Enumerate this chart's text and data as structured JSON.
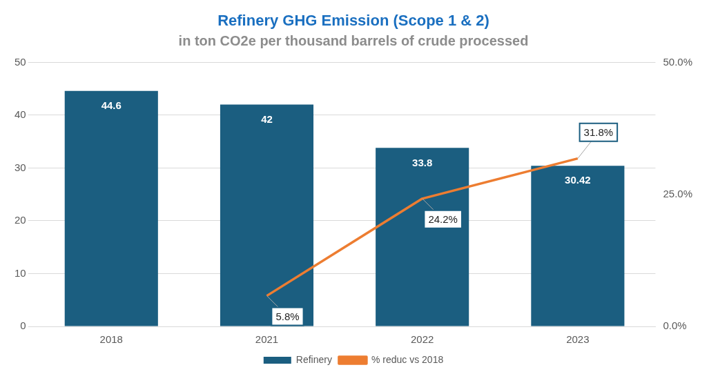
{
  "chart_data": {
    "type": "bar",
    "title": "Refinery GHG Emission (Scope 1 & 2)",
    "subtitle": "in ton CO2e per thousand barrels of crude processed",
    "categories": [
      "2018",
      "2021",
      "2022",
      "2023"
    ],
    "series": [
      {
        "name": "Refinery",
        "color": "#1b5e80",
        "values": [
          44.6,
          42,
          33.8,
          30.42
        ]
      },
      {
        "name": "% reduc vs 2018",
        "type": "line",
        "axis": "y2",
        "color": "#ed7d31",
        "values": [
          null,
          5.8,
          24.2,
          31.8
        ],
        "value_labels": [
          null,
          "5.8%",
          "24.2%",
          "31.8%"
        ]
      }
    ],
    "ylim": [
      0,
      50
    ],
    "yticks": [
      0,
      10,
      20,
      30,
      40,
      50
    ],
    "y2lim": [
      0,
      50
    ],
    "y2ticks": [
      {
        "value": 0,
        "label": "0.0%"
      },
      {
        "value": 25,
        "label": "25.0%"
      },
      {
        "value": 50,
        "label": "50.0%"
      }
    ],
    "grid": "y",
    "legend": "bottom",
    "marker": "none",
    "line_style": "solid",
    "data_labels": true
  }
}
